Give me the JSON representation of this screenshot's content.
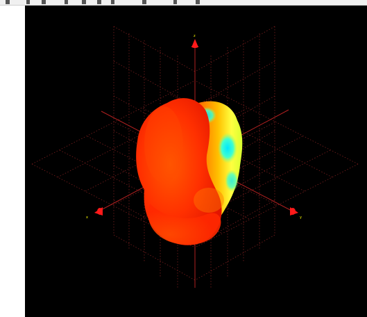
{
  "viewer": {
    "background_color": "#000000",
    "grid_color": "#7a1e1e",
    "axis_color": "#b02020",
    "arrow_color": "#ff1a1a",
    "axis_label_color": "#ffff00"
  },
  "axes": [
    {
      "id": "z",
      "label": "z"
    },
    {
      "id": "x",
      "label": "x"
    },
    {
      "id": "y",
      "label": "y"
    }
  ],
  "toolbar": {
    "icons": [
      "rotate-icon",
      "pan-icon",
      "zoom-icon",
      "reset-icon",
      "view-icon",
      "export-icon"
    ]
  },
  "surface": {
    "colormap": "jet",
    "dominant_color": "#ff3a00",
    "highlight_colors": [
      "#ffd000",
      "#40ffd0",
      "#00e0ff"
    ]
  }
}
